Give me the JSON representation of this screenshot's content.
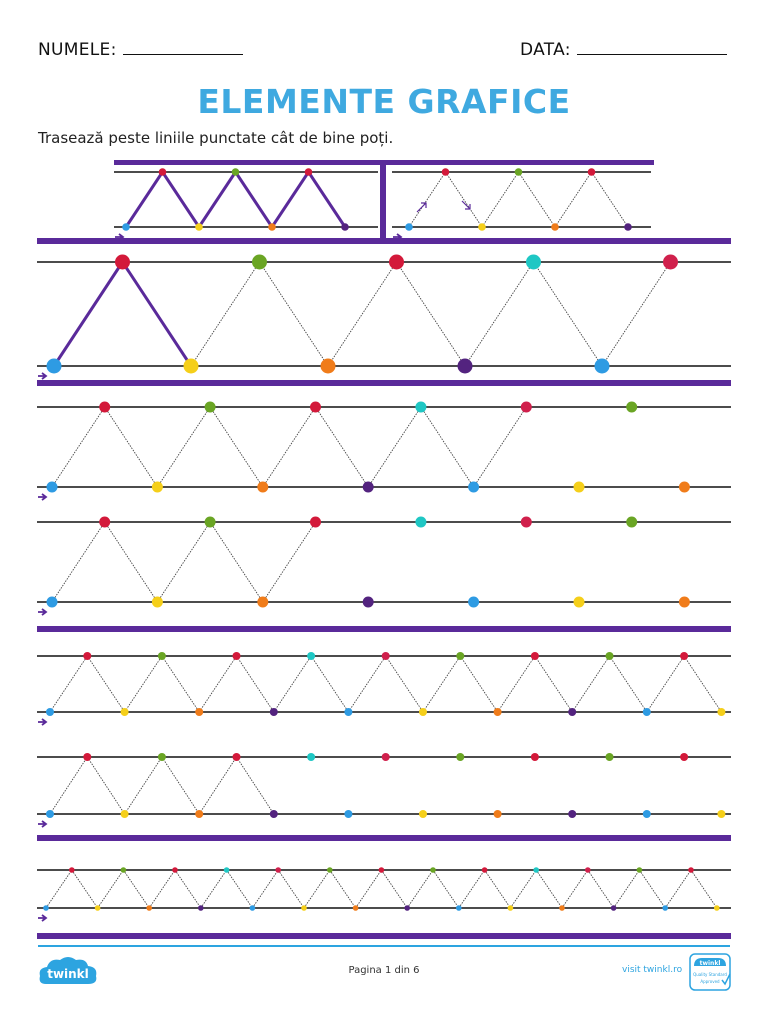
{
  "header": {
    "name_label": "NUMELE:",
    "date_label": "DATA:"
  },
  "title": "ELEMENTE GRAFICE",
  "instruction": "Trasează peste liniile punctate cât de bine poți.",
  "footer": {
    "page_label": "Pagina 1 din 6",
    "site": "visit twinkl.ro",
    "logo_text": "twinkl",
    "badge_lines": [
      "twinkl",
      "Quality Standard",
      "Approved"
    ]
  },
  "colors": {
    "purple": "#5a2a9a",
    "guide": "#111111",
    "blue": "#2e9be3",
    "yellow": "#f5cf1a",
    "orange": "#f07c1a",
    "darkpurple": "#53237f",
    "red": "#d3193a",
    "green": "#6aa524",
    "teal": "#1fc7c4",
    "crimson": "#d0204c",
    "brand_blue": "#2da4e0"
  },
  "worksheet": {
    "rows": [
      {
        "name": "demo-left",
        "peak_count": 3,
        "pre_traced_segments": 6,
        "arrow": true
      },
      {
        "name": "demo-right",
        "peak_count": 4,
        "pre_traced_segments": 0,
        "arrow": true,
        "direction_hints": true
      },
      {
        "name": "large",
        "peak_count": 5,
        "pre_traced_segments": 2,
        "arrow": true
      },
      {
        "name": "medium-1",
        "peak_count": 6,
        "pre_traced_segments": 0,
        "dashed_segments": 9,
        "arrow": true
      },
      {
        "name": "medium-2",
        "peak_count": 6,
        "pre_traced_segments": 0,
        "dashed_segments": 5,
        "arrow": true
      },
      {
        "name": "small-1",
        "peak_count": 9,
        "pre_traced_segments": 0,
        "dashed_segments": 18,
        "arrow": true
      },
      {
        "name": "small-2",
        "peak_count": 9,
        "pre_traced_segments": 0,
        "dashed_segments": 6,
        "arrow": true
      },
      {
        "name": "tiny",
        "peak_count": 13,
        "pre_traced_segments": 0,
        "dashed_segments": 26,
        "arrow": true
      }
    ]
  }
}
